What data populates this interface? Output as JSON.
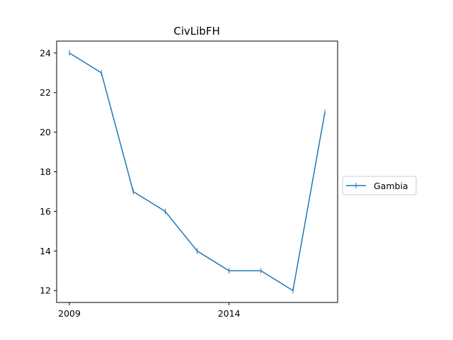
{
  "chart_data": {
    "type": "line",
    "title": "CivLibFH",
    "xlabel": "",
    "ylabel": "",
    "x": [
      2009,
      2010,
      2011,
      2012,
      2013,
      2014,
      2015,
      2016,
      2017
    ],
    "series": [
      {
        "name": "Gambia",
        "values": [
          24,
          23,
          17,
          16,
          14,
          13,
          13,
          12,
          21
        ]
      }
    ],
    "xticks": [
      2009,
      2014
    ],
    "xtick_labels": [
      "2009",
      "2014"
    ],
    "yticks": [
      12,
      14,
      16,
      18,
      20,
      22,
      24
    ],
    "ytick_labels": [
      "12",
      "14",
      "16",
      "18",
      "20",
      "22",
      "24"
    ],
    "xlim": [
      2008.6,
      2017.4
    ],
    "ylim": [
      11.4,
      24.6
    ],
    "grid": false,
    "legend_position": "right",
    "colors": {
      "series": "#1f77b4",
      "axes": "#000000",
      "background": "#ffffff"
    },
    "marker": "vertical-tick"
  }
}
